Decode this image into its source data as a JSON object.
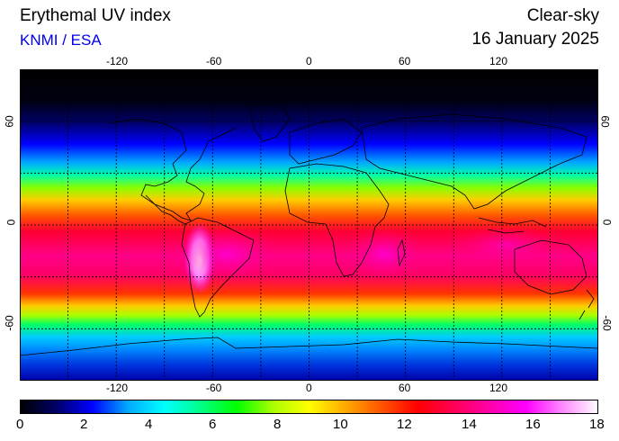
{
  "header": {
    "title": "Erythemal UV index",
    "credit": "KNMI / ESA",
    "sky": "Clear-sky",
    "date": "16 January 2025"
  },
  "map": {
    "lon_ticks": [
      "-120",
      "-60",
      "0",
      "60",
      "120"
    ],
    "lat_ticks": [
      "60",
      "0",
      "-60"
    ],
    "lon_range": [
      -180,
      180
    ],
    "lat_range": [
      -90,
      90
    ],
    "grid": true
  },
  "colorbar": {
    "labels": [
      "0",
      "2",
      "4",
      "6",
      "8",
      "10",
      "12",
      "14",
      "16",
      "18"
    ],
    "colors": [
      "#000000",
      "#000066",
      "#0000ff",
      "#00aaff",
      "#00ffff",
      "#00ff88",
      "#00ff00",
      "#aaff00",
      "#ffff00",
      "#ffaa00",
      "#ff5500",
      "#ff0000",
      "#ff0055",
      "#ff00aa",
      "#ff00ff",
      "#ff88ff",
      "#ffffff"
    ]
  }
}
